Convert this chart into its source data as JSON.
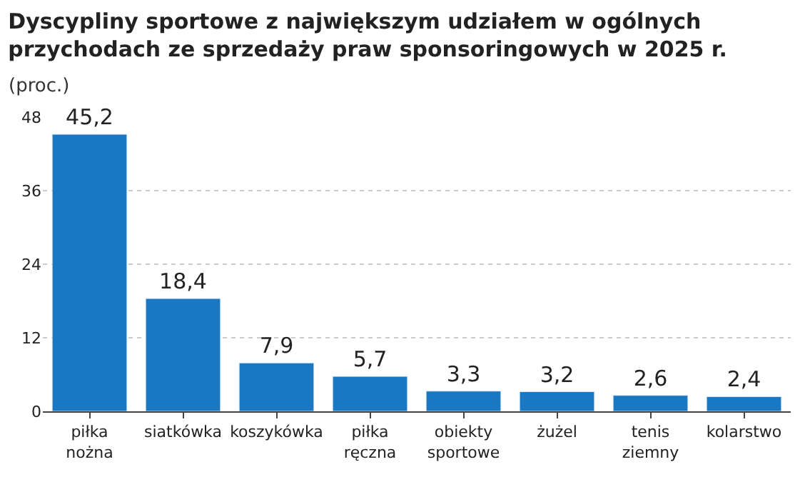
{
  "chart_data": {
    "type": "bar",
    "title": "Dyscypliny sportowe z największym udziałem w ogólnych przychodach ze sprzedaży praw sponsoringowych w 2025 r.",
    "subtitle": "(proc.)",
    "categories": [
      "piłka nożna",
      "siatkówka",
      "koszykówka",
      "piłka ręczna",
      "obiekty sportowe",
      "żużel",
      "tenis ziemny",
      "kolarstwo"
    ],
    "values": [
      45.2,
      18.4,
      7.9,
      5.7,
      3.3,
      3.2,
      2.6,
      2.4
    ],
    "value_labels": [
      "45,2",
      "18,4",
      "7,9",
      "5,7",
      "3,3",
      "3,2",
      "2,6",
      "2,4"
    ],
    "color": "#1a78c2",
    "ylim": [
      0,
      48
    ],
    "yticks": [
      0,
      12,
      24,
      36,
      48
    ],
    "grid": "y"
  }
}
